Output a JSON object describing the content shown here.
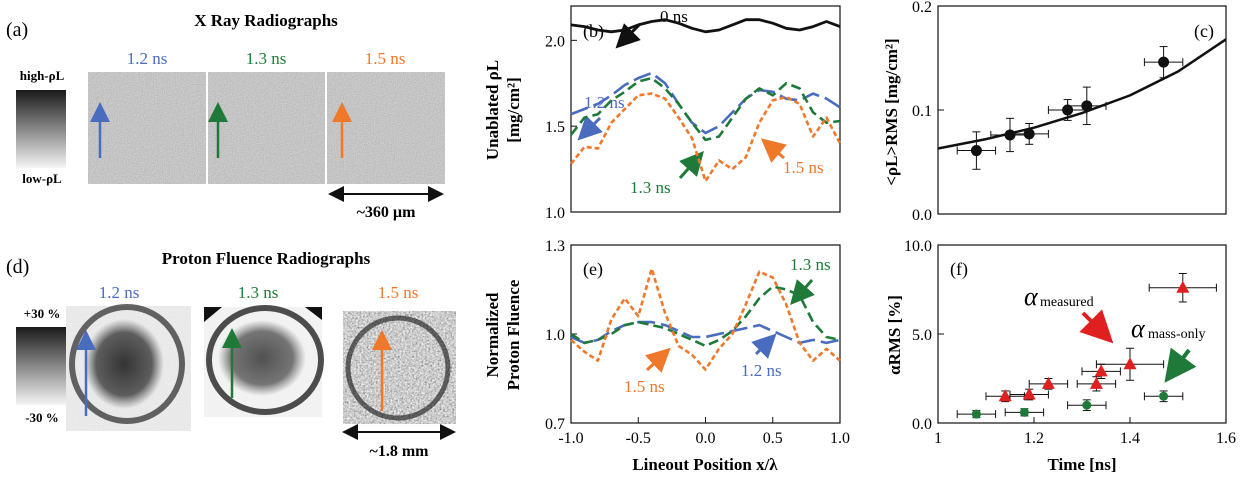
{
  "colors": {
    "blue": "#4a6cbf",
    "green": "#1f7a3a",
    "orange": "#f0782a",
    "red": "#e02020",
    "black": "#111111"
  },
  "panels": {
    "a": {
      "label": "(a)",
      "title": "X Ray Radiographs",
      "scale_top": "high-ρL",
      "scale_bottom": "low-ρL",
      "times": [
        "1.2 ns",
        "1.3 ns",
        "1.5 ns"
      ],
      "scalebar": "~360 µm"
    },
    "d": {
      "label": "(d)",
      "title": "Proton Fluence Radiographs",
      "scale_top": "+30 %",
      "scale_bottom": "-30 %",
      "times": [
        "1.2 ns",
        "1.3 ns",
        "1.5 ns"
      ],
      "scalebar": "~1.8 mm"
    },
    "b": {
      "label": "(b)",
      "annotations": {
        "t0": "0 ns",
        "t12": "1.2 ns",
        "t13": "1.3 ns",
        "t15": "1.5 ns"
      }
    },
    "e": {
      "label": "(e)",
      "annotations": {
        "t12": "1.2 ns",
        "t13": "1.3 ns",
        "t15": "1.5 ns"
      }
    },
    "c": {
      "label": "(c)"
    },
    "f": {
      "label": "(f)",
      "alpha_measured_sub": "measured",
      "alpha_mass_sub": "mass-only",
      "alpha_symbol": "α"
    }
  },
  "chart_data": [
    {
      "id": "b",
      "type": "line",
      "ylabel": [
        "Unablated ρL",
        "[mg/cm²]"
      ],
      "xlim": [
        -1.0,
        1.0
      ],
      "ylim": [
        1.0,
        2.2
      ],
      "yticks": [
        "1.0",
        "1.5",
        "2.0"
      ],
      "ytick_values": [
        1.0,
        1.5,
        2.0
      ],
      "series": [
        {
          "color": "black",
          "dash": "solid",
          "x": [
            -1.0,
            -0.9,
            -0.8,
            -0.7,
            -0.6,
            -0.5,
            -0.4,
            -0.3,
            -0.2,
            -0.1,
            0.0,
            0.1,
            0.2,
            0.3,
            0.4,
            0.5,
            0.6,
            0.7,
            0.8,
            0.9,
            1.0
          ],
          "y": [
            2.09,
            2.08,
            2.06,
            2.05,
            2.06,
            2.09,
            2.11,
            2.12,
            2.1,
            2.07,
            2.05,
            2.06,
            2.09,
            2.12,
            2.12,
            2.1,
            2.07,
            2.06,
            2.08,
            2.11,
            2.08
          ]
        },
        {
          "color": "blue",
          "dash": "long",
          "x": [
            -1.0,
            -0.9,
            -0.8,
            -0.7,
            -0.6,
            -0.5,
            -0.4,
            -0.3,
            -0.2,
            -0.1,
            0.0,
            0.1,
            0.2,
            0.3,
            0.4,
            0.5,
            0.6,
            0.7,
            0.8,
            0.9,
            1.0
          ],
          "y": [
            1.57,
            1.6,
            1.63,
            1.68,
            1.74,
            1.78,
            1.81,
            1.75,
            1.63,
            1.52,
            1.46,
            1.5,
            1.58,
            1.66,
            1.71,
            1.7,
            1.66,
            1.65,
            1.69,
            1.66,
            1.61
          ]
        },
        {
          "color": "green",
          "dash": "medium",
          "x": [
            -1.0,
            -0.9,
            -0.8,
            -0.7,
            -0.6,
            -0.5,
            -0.4,
            -0.3,
            -0.2,
            -0.1,
            0.0,
            0.1,
            0.2,
            0.3,
            0.4,
            0.5,
            0.6,
            0.7,
            0.8,
            0.9,
            1.0
          ],
          "y": [
            1.45,
            1.55,
            1.57,
            1.65,
            1.7,
            1.76,
            1.78,
            1.72,
            1.63,
            1.52,
            1.42,
            1.44,
            1.55,
            1.66,
            1.72,
            1.68,
            1.75,
            1.72,
            1.58,
            1.52,
            1.53
          ]
        },
        {
          "color": "orange",
          "dash": "short",
          "x": [
            -1.0,
            -0.9,
            -0.8,
            -0.7,
            -0.6,
            -0.5,
            -0.4,
            -0.3,
            -0.2,
            -0.1,
            0.0,
            0.1,
            0.2,
            0.3,
            0.4,
            0.5,
            0.6,
            0.7,
            0.8,
            0.9,
            1.0
          ],
          "y": [
            1.28,
            1.38,
            1.37,
            1.52,
            1.6,
            1.68,
            1.69,
            1.66,
            1.55,
            1.43,
            1.18,
            1.3,
            1.25,
            1.32,
            1.52,
            1.65,
            1.67,
            1.63,
            1.44,
            1.55,
            1.4
          ]
        }
      ]
    },
    {
      "id": "e",
      "type": "line",
      "ylabel": [
        "Normalized",
        "Proton Fluence"
      ],
      "xlabel": "Lineout Position x/λ",
      "xlim": [
        -1.0,
        1.0
      ],
      "ylim": [
        0.7,
        1.3
      ],
      "xticks": [
        "-1.0",
        "-0.5",
        "0.0",
        "0.5",
        "1.0"
      ],
      "xtick_values": [
        -1.0,
        -0.5,
        0.0,
        0.5,
        1.0
      ],
      "yticks": [
        "0.7",
        "1.0",
        "1.3"
      ],
      "ytick_values": [
        0.7,
        1.0,
        1.3
      ],
      "series": [
        {
          "color": "blue",
          "dash": "long",
          "x": [
            -1.0,
            -0.9,
            -0.8,
            -0.7,
            -0.6,
            -0.5,
            -0.4,
            -0.3,
            -0.2,
            -0.1,
            0.0,
            0.1,
            0.2,
            0.3,
            0.4,
            0.5,
            0.6,
            0.7,
            0.8,
            0.9,
            1.0
          ],
          "y": [
            0.99,
            0.97,
            0.98,
            1.01,
            1.03,
            1.04,
            1.04,
            1.03,
            1.01,
            0.99,
            0.99,
            1.0,
            1.01,
            1.02,
            1.03,
            1.01,
            0.99,
            0.97,
            0.98,
            0.97,
            0.98
          ]
        },
        {
          "color": "green",
          "dash": "medium",
          "x": [
            -1.0,
            -0.9,
            -0.8,
            -0.7,
            -0.6,
            -0.5,
            -0.4,
            -0.3,
            -0.2,
            -0.1,
            0.0,
            0.1,
            0.2,
            0.3,
            0.4,
            0.5,
            0.6,
            0.7,
            0.8,
            0.9,
            1.0
          ],
          "y": [
            1.0,
            0.97,
            0.98,
            1.0,
            1.03,
            1.04,
            1.03,
            1.02,
            1.0,
            0.98,
            0.96,
            0.98,
            1.01,
            1.06,
            1.12,
            1.16,
            1.15,
            1.13,
            1.04,
            0.99,
            0.98
          ]
        },
        {
          "color": "orange",
          "dash": "short",
          "x": [
            -1.0,
            -0.9,
            -0.8,
            -0.7,
            -0.6,
            -0.5,
            -0.4,
            -0.3,
            -0.2,
            -0.1,
            0.0,
            0.1,
            0.2,
            0.3,
            0.4,
            0.5,
            0.6,
            0.7,
            0.8,
            0.9,
            1.0
          ],
          "y": [
            0.98,
            0.94,
            0.91,
            1.05,
            1.12,
            1.06,
            1.22,
            1.07,
            0.96,
            0.93,
            0.88,
            0.95,
            1.0,
            1.1,
            1.21,
            1.19,
            1.1,
            0.97,
            0.91,
            0.95,
            0.91
          ]
        }
      ]
    },
    {
      "id": "c",
      "type": "scatter",
      "ylabel": "<ρL>RMS [mg/cm²]",
      "xlim": [
        1.0,
        1.6
      ],
      "ylim": [
        0.0,
        0.2
      ],
      "yticks": [
        "0.0",
        "0.1",
        "0.2"
      ],
      "ytick_values": [
        0.0,
        0.1,
        0.2
      ],
      "points": [
        {
          "x": 1.08,
          "y": 0.061,
          "xerr": 0.04,
          "yerr": 0.018
        },
        {
          "x": 1.15,
          "y": 0.076,
          "xerr": 0.04,
          "yerr": 0.016
        },
        {
          "x": 1.19,
          "y": 0.077,
          "xerr": 0.04,
          "yerr": 0.01
        },
        {
          "x": 1.27,
          "y": 0.1,
          "xerr": 0.04,
          "yerr": 0.01
        },
        {
          "x": 1.31,
          "y": 0.104,
          "xerr": 0.04,
          "yerr": 0.018
        },
        {
          "x": 1.47,
          "y": 0.146,
          "xerr": 0.04,
          "yerr": 0.015
        }
      ],
      "fit": {
        "x": [
          1.0,
          1.1,
          1.2,
          1.3,
          1.4,
          1.5,
          1.6
        ],
        "y": [
          0.063,
          0.072,
          0.083,
          0.097,
          0.114,
          0.137,
          0.168
        ]
      }
    },
    {
      "id": "f",
      "type": "scatter",
      "ylabel": "αRMS [%]",
      "xlabel": "Time [ns]",
      "xlim": [
        1.0,
        1.6
      ],
      "ylim": [
        0.0,
        10.0
      ],
      "xticks": [
        "1",
        "1.2",
        "1.4",
        "1.6"
      ],
      "xtick_values": [
        1.0,
        1.2,
        1.4,
        1.6
      ],
      "yticks": [
        "0.0",
        "5.0",
        "10.0"
      ],
      "ytick_values": [
        0.0,
        5.0,
        10.0
      ],
      "series": [
        {
          "name": "measured",
          "color": "red",
          "marker": "triangle",
          "points": [
            {
              "x": 1.14,
              "y": 1.5,
              "xerr": 0.04,
              "yerr": 0.3
            },
            {
              "x": 1.19,
              "y": 1.6,
              "xerr": 0.04,
              "yerr": 0.3
            },
            {
              "x": 1.23,
              "y": 2.2,
              "xerr": 0.04,
              "yerr": 0.3
            },
            {
              "x": 1.33,
              "y": 2.2,
              "xerr": 0.04,
              "yerr": 0.4
            },
            {
              "x": 1.34,
              "y": 2.9,
              "xerr": 0.04,
              "yerr": 0.4
            },
            {
              "x": 1.4,
              "y": 3.3,
              "xerr": 0.07,
              "yerr": 0.9
            },
            {
              "x": 1.51,
              "y": 7.6,
              "xerr": 0.07,
              "yerr": 0.8
            }
          ]
        },
        {
          "name": "mass-only",
          "color": "green",
          "marker": "circle",
          "points": [
            {
              "x": 1.08,
              "y": 0.5,
              "xerr": 0.04,
              "yerr": 0.2
            },
            {
              "x": 1.18,
              "y": 0.6,
              "xerr": 0.04,
              "yerr": 0.2
            },
            {
              "x": 1.31,
              "y": 1.0,
              "xerr": 0.04,
              "yerr": 0.3
            },
            {
              "x": 1.47,
              "y": 1.5,
              "xerr": 0.04,
              "yerr": 0.3
            }
          ]
        }
      ]
    }
  ]
}
